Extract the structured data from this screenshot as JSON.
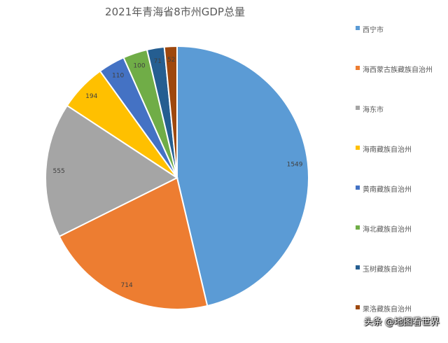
{
  "chart_data": {
    "type": "pie",
    "title": "2021年青海省8市州GDP总量",
    "categories": [
      "西宁市",
      "海西蒙古族藏族自治州",
      "海东市",
      "海南藏族自治州",
      "黄南藏族自治州",
      "海北藏族自治州",
      "玉树藏族自治州",
      "果洛藏族自治州"
    ],
    "values": [
      1549,
      714,
      555,
      194,
      110,
      100,
      71,
      52
    ],
    "colors": [
      "#5B9BD5",
      "#ED7D31",
      "#A5A5A5",
      "#FFC000",
      "#4472C4",
      "#70AD47",
      "#255E91",
      "#9E480E"
    ],
    "legend_position": "right"
  },
  "watermark": "头条 @地图看世界"
}
